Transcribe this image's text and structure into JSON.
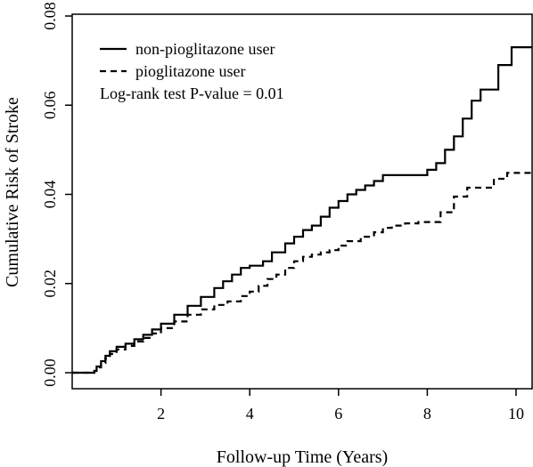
{
  "chart_data": {
    "type": "line",
    "title": "",
    "xlabel": "Follow-up Time (Years)",
    "ylabel": "Cumulative Risk of Stroke",
    "xlim": [
      0,
      10.4
    ],
    "ylim": [
      0,
      0.08
    ],
    "x_ticks": [
      2,
      4,
      6,
      8,
      10
    ],
    "y_ticks": [
      0.0,
      0.02,
      0.04,
      0.06,
      0.08
    ],
    "x_tick_labels": [
      "2",
      "4",
      "6",
      "8",
      "10"
    ],
    "y_tick_labels": [
      "0.00",
      "0.02",
      "0.04",
      "0.06",
      "0.08"
    ],
    "grid": false,
    "legend_position": "top-left",
    "annotation": "Log-rank test P-value = 0.01",
    "series": [
      {
        "name": "non-pioglitazone user",
        "line_style": "solid",
        "color": "#000000",
        "step": true,
        "x": [
          0,
          0.5,
          0.55,
          0.65,
          0.75,
          0.85,
          1.0,
          1.2,
          1.4,
          1.6,
          1.8,
          2.0,
          2.3,
          2.6,
          2.9,
          3.2,
          3.4,
          3.6,
          3.8,
          4.0,
          4.3,
          4.5,
          4.8,
          5.0,
          5.2,
          5.4,
          5.6,
          5.8,
          6.0,
          6.2,
          6.4,
          6.6,
          6.8,
          7.0,
          7.2,
          7.5,
          7.8,
          8.0,
          8.2,
          8.4,
          8.6,
          8.8,
          9.0,
          9.2,
          9.6,
          9.9,
          10.4
        ],
        "y": [
          0,
          0.0004,
          0.0014,
          0.0026,
          0.0038,
          0.0048,
          0.0058,
          0.0065,
          0.0075,
          0.0085,
          0.0097,
          0.011,
          0.013,
          0.015,
          0.017,
          0.019,
          0.0205,
          0.022,
          0.0235,
          0.024,
          0.025,
          0.027,
          0.029,
          0.0305,
          0.032,
          0.033,
          0.035,
          0.037,
          0.0385,
          0.04,
          0.041,
          0.042,
          0.043,
          0.0443,
          0.0443,
          0.0443,
          0.0443,
          0.0455,
          0.047,
          0.05,
          0.053,
          0.057,
          0.061,
          0.0635,
          0.069,
          0.073,
          0.073
        ]
      },
      {
        "name": "pioglitazone user",
        "line_style": "dashed",
        "color": "#000000",
        "step": true,
        "x": [
          0,
          0.5,
          0.55,
          0.65,
          0.75,
          0.85,
          1.0,
          1.2,
          1.4,
          1.6,
          1.8,
          2.0,
          2.3,
          2.6,
          2.9,
          3.2,
          3.5,
          3.8,
          4.0,
          4.2,
          4.4,
          4.6,
          4.8,
          5.0,
          5.2,
          5.4,
          5.6,
          5.8,
          6.0,
          6.2,
          6.5,
          6.8,
          7.0,
          7.2,
          7.5,
          7.8,
          8.0,
          8.3,
          8.6,
          8.9,
          9.2,
          9.5,
          9.8,
          10.4
        ],
        "y": [
          0,
          0.0004,
          0.0012,
          0.0022,
          0.0032,
          0.0042,
          0.0052,
          0.006,
          0.007,
          0.0078,
          0.0088,
          0.01,
          0.0115,
          0.013,
          0.0142,
          0.0152,
          0.016,
          0.0172,
          0.0182,
          0.0195,
          0.021,
          0.022,
          0.0235,
          0.025,
          0.026,
          0.0265,
          0.027,
          0.0275,
          0.0285,
          0.0295,
          0.0305,
          0.0315,
          0.0325,
          0.033,
          0.0335,
          0.0338,
          0.0338,
          0.036,
          0.0395,
          0.0415,
          0.0415,
          0.0435,
          0.0448,
          0.0448
        ]
      }
    ]
  }
}
